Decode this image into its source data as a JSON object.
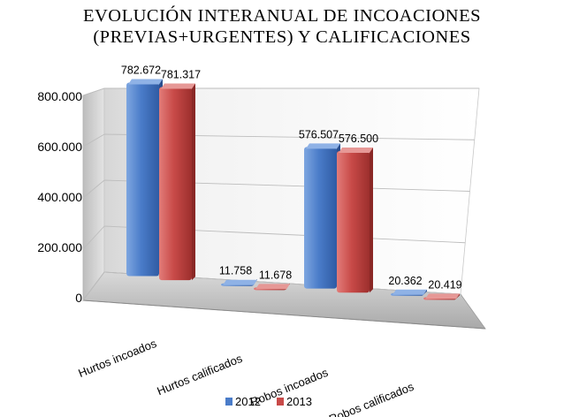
{
  "chart_data": {
    "type": "bar",
    "title_lines": [
      "EVOLUCIÓN INTERANUAL DE INCOACIONES",
      "(PREVIAS+URGENTES) Y  CALIFICACIONES"
    ],
    "categories": [
      "Hurtos incoados",
      "Hurtos calificados",
      "Robos incoados",
      "Robos calificados"
    ],
    "series": [
      {
        "name": "2012",
        "values": [
          782672,
          11758,
          576507,
          20362
        ],
        "labels": [
          "782.672",
          "11.758",
          "576.507",
          "20.362"
        ],
        "color": "#4a7cc9"
      },
      {
        "name": "2013",
        "values": [
          781317,
          11678,
          576500,
          20419
        ],
        "labels": [
          "781.317",
          "11.678",
          "576.500",
          "20.419"
        ],
        "color": "#c84a48"
      }
    ],
    "ylim": [
      0,
      800000
    ],
    "yticks": [
      0,
      200000,
      400000,
      600000,
      800000
    ],
    "ytick_labels": [
      "0",
      "200.000",
      "400.000",
      "600.000",
      "800.000"
    ],
    "grid": true,
    "legend_position": "bottom",
    "style": "3d-perspective"
  }
}
